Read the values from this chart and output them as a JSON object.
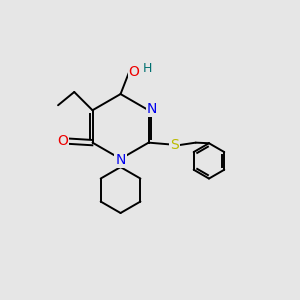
{
  "bg_color": "#e6e6e6",
  "atom_colors": {
    "N": "#0000ee",
    "O": "#ee0000",
    "S": "#bbbb00",
    "C": "#000000",
    "H": "#007070"
  },
  "font_size_atoms": 10,
  "line_width": 1.4
}
